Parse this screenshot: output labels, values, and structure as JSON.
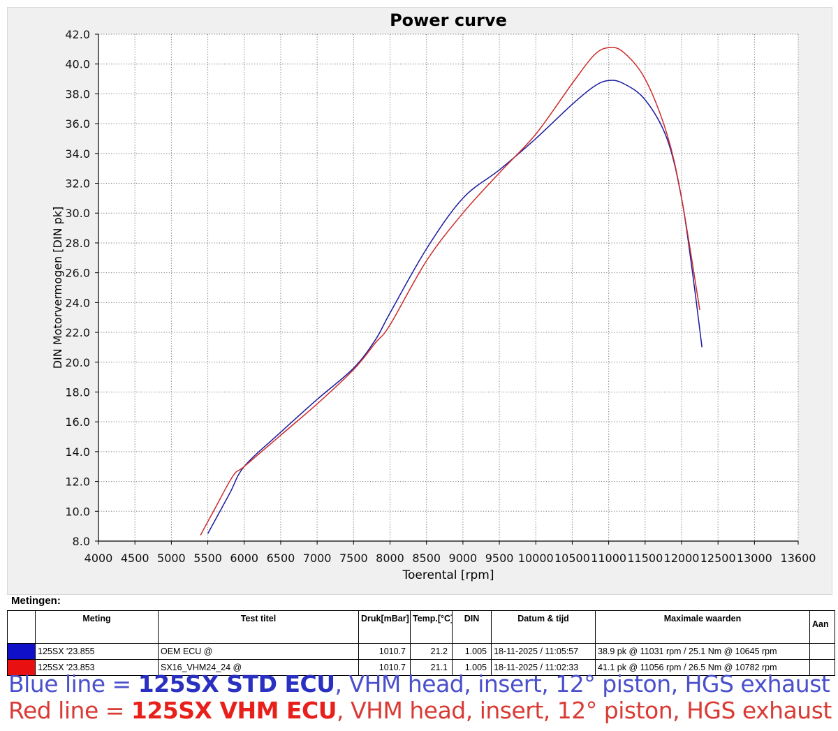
{
  "chart_data": {
    "type": "line",
    "title": "Power curve",
    "xlabel": "Toerental [rpm]",
    "ylabel": "DIN Motorvermogen [DIN pk]",
    "xlim": [
      4000,
      13600
    ],
    "ylim": [
      8.0,
      42.0
    ],
    "x_ticks": [
      "4000",
      "4500",
      "5000",
      "5500",
      "6000",
      "6500",
      "7000",
      "7500",
      "8000",
      "8500",
      "9000",
      "9500",
      "10000",
      "10500",
      "11000",
      "11500",
      "12000",
      "12500",
      "13000",
      "13600"
    ],
    "y_ticks": [
      "8.0",
      "10.0",
      "12.0",
      "14.0",
      "16.0",
      "18.0",
      "20.0",
      "22.0",
      "24.0",
      "26.0",
      "28.0",
      "30.0",
      "32.0",
      "34.0",
      "36.0",
      "38.0",
      "40.0",
      "42.0"
    ],
    "grid": true,
    "series": [
      {
        "color": "#1a1aa0",
        "points": [
          [
            5500,
            8.5
          ],
          [
            5800,
            11.2
          ],
          [
            6000,
            13.0
          ],
          [
            6500,
            15.3
          ],
          [
            7000,
            17.5
          ],
          [
            7500,
            19.6
          ],
          [
            7800,
            21.5
          ],
          [
            8000,
            23.3
          ],
          [
            8500,
            27.6
          ],
          [
            9000,
            31.0
          ],
          [
            9500,
            32.9
          ],
          [
            10000,
            35.0
          ],
          [
            10500,
            37.3
          ],
          [
            10800,
            38.5
          ],
          [
            11000,
            38.9
          ],
          [
            11200,
            38.7
          ],
          [
            11500,
            37.6
          ],
          [
            11800,
            35.0
          ],
          [
            12000,
            31.0
          ],
          [
            12150,
            26.0
          ],
          [
            12280,
            21.0
          ]
        ]
      },
      {
        "color": "#cc2a2a",
        "points": [
          [
            5400,
            8.4
          ],
          [
            5600,
            10.2
          ],
          [
            5850,
            12.4
          ],
          [
            6000,
            13.0
          ],
          [
            6500,
            15.1
          ],
          [
            7000,
            17.2
          ],
          [
            7500,
            19.5
          ],
          [
            7800,
            21.3
          ],
          [
            8000,
            22.5
          ],
          [
            8500,
            26.8
          ],
          [
            9000,
            30.0
          ],
          [
            9500,
            32.7
          ],
          [
            10000,
            35.3
          ],
          [
            10500,
            38.7
          ],
          [
            10800,
            40.6
          ],
          [
            11000,
            41.1
          ],
          [
            11200,
            40.8
          ],
          [
            11500,
            39.0
          ],
          [
            11800,
            35.3
          ],
          [
            12000,
            31.0
          ],
          [
            12250,
            23.5
          ]
        ]
      }
    ]
  },
  "measurements": {
    "title": "Metingen:",
    "headers": [
      "",
      "Meting",
      "Test titel",
      "Druk[mBar]",
      "Temp.[°C]",
      "DIN",
      "Datum & tijd",
      "Maximale waarden",
      "Aan"
    ],
    "rows": [
      {
        "color": "#1010c8",
        "meting": "125SX '23.855",
        "titel": "OEM ECU   @",
        "druk": "1010.7",
        "temp": "21.2",
        "din": "1.005",
        "datum": "18-11-2025 / 11:05:57",
        "max": "38.9 pk @ 11031 rpm / 25.1 Nm @ 10645 rpm"
      },
      {
        "color": "#e81010",
        "meting": "125SX '23.853",
        "titel": "SX16_VHM24_24   @",
        "druk": "1010.7",
        "temp": "21.1",
        "din": "1.005",
        "datum": "18-11-2025 / 11:02:33",
        "max": "41.1 pk @ 11056 rpm / 26.5 Nm @ 10782 rpm"
      }
    ]
  },
  "captions": {
    "blue_prefix": "Blue line = ",
    "blue_bold": "125SX STD ECU",
    "blue_rest": ", VHM head, insert, 12° piston, HGS exhaust",
    "red_prefix": "Red line = ",
    "red_bold": "125SX VHM ECU",
    "red_rest": ", VHM head, insert, 12° piston, HGS exhaust"
  }
}
